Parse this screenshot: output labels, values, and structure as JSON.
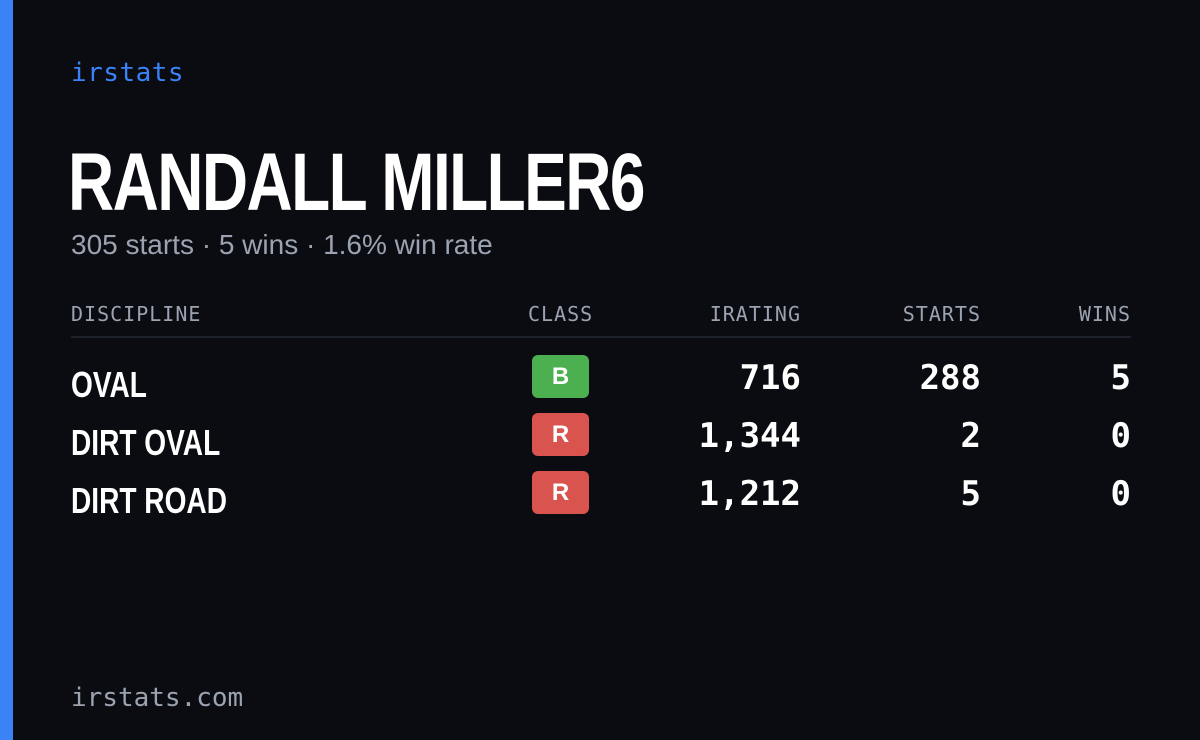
{
  "brand": "irstats",
  "driver": {
    "name": "RANDALL MILLER6",
    "summary": "305 starts · 5 wins · 1.6% win rate"
  },
  "table": {
    "headers": {
      "discipline": "DISCIPLINE",
      "class": "CLASS",
      "irating": "IRATING",
      "starts": "STARTS",
      "wins": "WINS"
    },
    "rows": [
      {
        "discipline": "OVAL",
        "class": "B",
        "irating": "716",
        "starts": "288",
        "wins": "5"
      },
      {
        "discipline": "DIRT OVAL",
        "class": "R",
        "irating": "1,344",
        "starts": "2",
        "wins": "0"
      },
      {
        "discipline": "DIRT ROAD",
        "class": "R",
        "irating": "1,212",
        "starts": "5",
        "wins": "0"
      }
    ]
  },
  "footer": {
    "url": "irstats.com"
  },
  "colors": {
    "accent": "#3b82f6",
    "background": "#0a0c12",
    "class_b": "#4caf50",
    "class_r": "#d9534f"
  }
}
